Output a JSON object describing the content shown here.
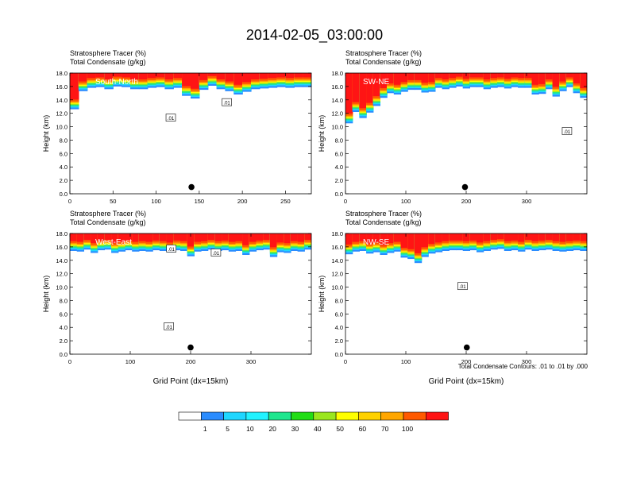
{
  "figure": {
    "title": "2014-02-05_03:00:00",
    "footnote": "Total Condensate Contours: .01 to .01 by .000",
    "colorbar": {
      "colors": [
        "#ffffff",
        "#2a8cff",
        "#1fd6ff",
        "#22f2ff",
        "#1ee68e",
        "#22dd16",
        "#9ae61e",
        "#ffff00",
        "#ffd100",
        "#ffa600",
        "#ff5a00",
        "#ff1414"
      ],
      "tick_labels": [
        "1",
        "5",
        "10",
        "20",
        "30",
        "40",
        "50",
        "60",
        "70",
        "100"
      ]
    }
  },
  "chart_data": [
    {
      "type": "heatmap",
      "panel_label": "South-North",
      "title_line1": "Stratosphere Tracer   (%)",
      "title_line2": "Total Condensate   (g/kg)",
      "ylabel": "Height (km)",
      "xlabel": "",
      "xlim": [
        0,
        280
      ],
      "ylim": [
        0,
        18
      ],
      "x_ticks": [
        "0",
        "50",
        "100",
        "150",
        "200",
        "250"
      ],
      "x_tick_values": [
        0,
        50,
        100,
        150,
        200,
        250
      ],
      "y_ticks": [
        "0.0",
        "2.0",
        "4.0",
        "6.0",
        "8.0",
        "10.0",
        "12.0",
        "14.0",
        "16.0",
        "18.0"
      ],
      "y_tick_values": [
        0,
        2,
        4,
        6,
        8,
        10,
        12,
        14,
        16,
        18
      ],
      "tracer_base_km": [
        12.6,
        15.3,
        15.8,
        15.9,
        15.6,
        16.0,
        15.9,
        15.6,
        15.6,
        15.8,
        15.9,
        15.6,
        15.8,
        14.6,
        14.2,
        15.5,
        16.1,
        15.6,
        15.3,
        14.8,
        15.2,
        15.6,
        15.7,
        15.8,
        15.9,
        15.8,
        15.9,
        15.9
      ],
      "contour_labels": [
        {
          "text": ".01",
          "x": 117,
          "y": 11.3
        },
        {
          "text": ".01",
          "x": 182,
          "y": 13.6
        }
      ],
      "marker": {
        "x": 141,
        "y": 1.0
      }
    },
    {
      "type": "heatmap",
      "panel_label": "SW-NE",
      "title_line1": "Stratosphere Tracer   (%)",
      "title_line2": "Total Condensate   (g/kg)",
      "ylabel": "Height (km)",
      "xlabel": "",
      "xlim": [
        0,
        400
      ],
      "ylim": [
        0,
        18
      ],
      "x_ticks": [
        "0",
        "100",
        "200",
        "300"
      ],
      "x_tick_values": [
        0,
        100,
        200,
        300
      ],
      "y_ticks": [
        "0.0",
        "2.0",
        "4.0",
        "6.0",
        "8.0",
        "10.0",
        "12.0",
        "14.0",
        "16.0",
        "18.0"
      ],
      "y_tick_values": [
        0,
        2,
        4,
        6,
        8,
        10,
        12,
        14,
        16,
        18
      ],
      "tracer_base_km": [
        10.5,
        12.2,
        11.3,
        12.1,
        13.1,
        14.3,
        15.0,
        14.8,
        15.2,
        15.5,
        15.5,
        15.1,
        15.2,
        15.8,
        15.6,
        15.8,
        16.0,
        15.7,
        15.9,
        15.9,
        15.6,
        15.8,
        15.9,
        15.7,
        15.9,
        15.8,
        15.8,
        14.8,
        14.9,
        15.6,
        14.5,
        15.3,
        15.9,
        15.0,
        14.3
      ],
      "contour_labels": [
        {
          "text": ".01",
          "x": 367,
          "y": 9.3
        }
      ],
      "marker": {
        "x": 198,
        "y": 1.0
      }
    },
    {
      "type": "heatmap",
      "panel_label": "West-East",
      "title_line1": "Stratosphere Tracer   (%)",
      "title_line2": "Total Condensate   (g/kg)",
      "ylabel": "Height (km)",
      "xlabel": "Grid Point (dx=15km)",
      "xlim": [
        0,
        400
      ],
      "ylim": [
        0,
        18
      ],
      "x_ticks": [
        "0",
        "100",
        "200",
        "300"
      ],
      "x_tick_values": [
        0,
        100,
        200,
        300
      ],
      "y_ticks": [
        "0.0",
        "2.0",
        "4.0",
        "6.0",
        "8.0",
        "10.0",
        "12.0",
        "14.0",
        "16.0",
        "18.0"
      ],
      "y_tick_values": [
        0,
        2,
        4,
        6,
        8,
        10,
        12,
        14,
        16,
        18
      ],
      "tracer_base_km": [
        15.4,
        15.3,
        15.6,
        15.1,
        15.5,
        15.6,
        15.1,
        15.3,
        15.5,
        15.3,
        15.4,
        15.3,
        15.5,
        15.4,
        15.2,
        15.5,
        15.4,
        14.6,
        15.3,
        15.4,
        15.6,
        15.4,
        15.5,
        15.3,
        15.4,
        14.8,
        15.3,
        15.5,
        15.6,
        14.5,
        15.2,
        15.1,
        15.4,
        15.3,
        15.6
      ],
      "contour_labels": [
        {
          "text": ".01",
          "x": 168,
          "y": 15.7
        },
        {
          "text": ".01",
          "x": 242,
          "y": 15.1
        },
        {
          "text": ".01",
          "x": 164,
          "y": 4.1
        }
      ],
      "marker": {
        "x": 200,
        "y": 1.0
      }
    },
    {
      "type": "heatmap",
      "panel_label": "NW-SE",
      "title_line1": "Stratosphere Tracer   (%)",
      "title_line2": "Total Condensate   (g/kg)",
      "ylabel": "Height (km)",
      "xlabel": "Grid Point (dx=15km)",
      "xlim": [
        0,
        400
      ],
      "ylim": [
        0,
        18
      ],
      "x_ticks": [
        "0",
        "100",
        "200",
        "300"
      ],
      "x_tick_values": [
        0,
        100,
        200,
        300
      ],
      "y_ticks": [
        "0.0",
        "2.0",
        "4.0",
        "6.0",
        "8.0",
        "10.0",
        "12.0",
        "14.0",
        "16.0",
        "18.0"
      ],
      "y_tick_values": [
        0,
        2,
        4,
        6,
        8,
        10,
        12,
        14,
        16,
        18
      ],
      "tracer_base_km": [
        14.9,
        15.3,
        15.4,
        15.0,
        15.2,
        14.8,
        15.1,
        15.3,
        14.4,
        14.2,
        13.6,
        14.5,
        15.0,
        15.2,
        15.4,
        15.5,
        15.5,
        15.4,
        15.5,
        15.2,
        15.4,
        15.6,
        15.7,
        15.4,
        15.5,
        15.3,
        15.6,
        15.4,
        15.5,
        15.6,
        15.4,
        15.3,
        15.4,
        15.5,
        15.4
      ],
      "contour_labels": [
        {
          "text": ".01",
          "x": 194,
          "y": 10.1
        }
      ],
      "marker": {
        "x": 201,
        "y": 1.0
      }
    }
  ]
}
